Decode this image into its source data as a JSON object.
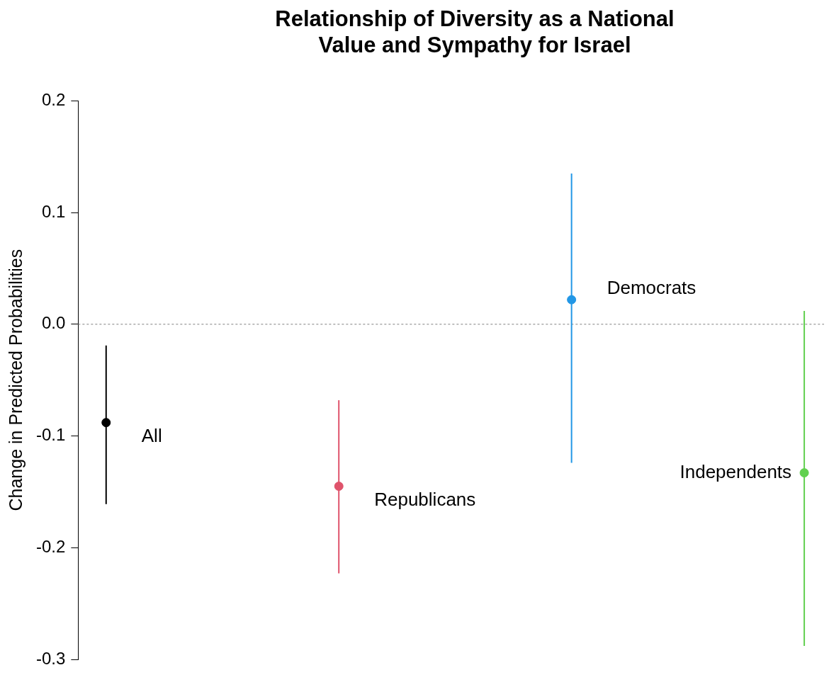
{
  "chart_data": {
    "type": "scatter",
    "title": "Relationship of Diversity as a National Value and Sympathy for Israel",
    "ylabel": "Change in Predicted Probabilities",
    "categories": [
      null,
      null,
      null,
      null
    ],
    "series": [
      {
        "name": "All",
        "color": "#000000",
        "values": [
          -0.088,
          null,
          null,
          null
        ],
        "errors": [
          [
            -0.161,
            -0.019
          ],
          null,
          null,
          null
        ]
      },
      {
        "name": "Republicans",
        "color": "#df536b",
        "values": [
          null,
          -0.145,
          null,
          null
        ],
        "errors": [
          null,
          [
            -0.223,
            -0.068
          ],
          null,
          null
        ]
      },
      {
        "name": "Democrats",
        "color": "#2297e6",
        "values": [
          null,
          null,
          0.022,
          null
        ],
        "errors": [
          null,
          null,
          [
            -0.124,
            0.135
          ],
          null
        ]
      },
      {
        "name": "Independents",
        "color": "#61d04f",
        "values": [
          null,
          null,
          null,
          -0.133
        ],
        "errors": [
          null,
          null,
          null,
          [
            -0.288,
            0.012
          ]
        ]
      }
    ],
    "ylim": [
      -0.3,
      0.2
    ],
    "yticks": [
      -0.3,
      -0.2,
      -0.1,
      {
        "value": 0,
        "label": "0.0"
      },
      0.1,
      0.2
    ],
    "ref_lines": [
      {
        "axis": "y",
        "value": 0,
        "color": "#7f7f7f",
        "line_style": "dotted"
      }
    ],
    "grid": false,
    "legend": false,
    "marker": "circle"
  }
}
